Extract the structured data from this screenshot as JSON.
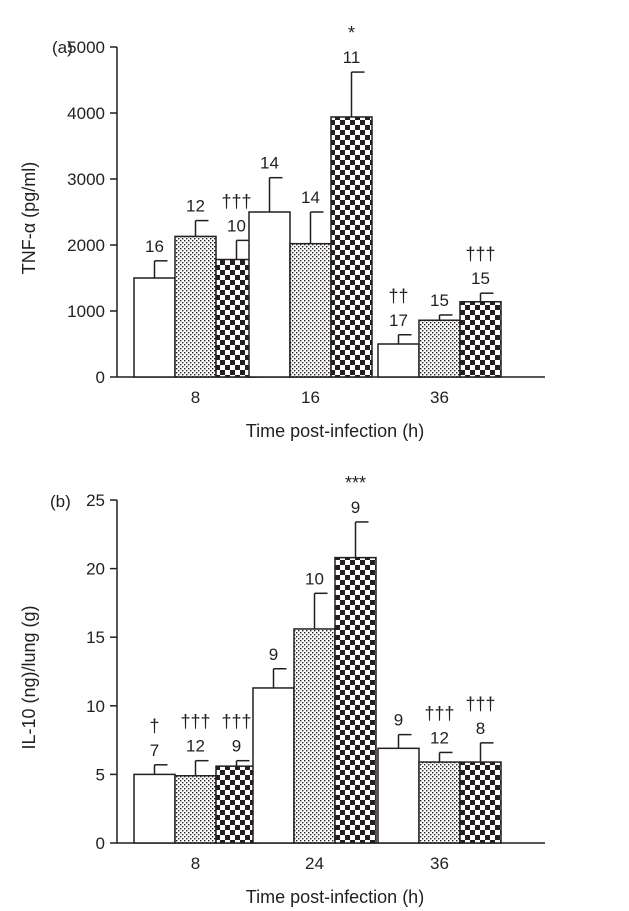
{
  "chart_data": [
    {
      "type": "bar",
      "panel": "(a)",
      "ylabel": "TNF-α (pg/ml)",
      "xlabel": "Time post-infection (h)",
      "categories": [
        "8",
        "16",
        "36"
      ],
      "ylim": [
        0,
        5000
      ],
      "yticks": [
        0,
        1000,
        2000,
        3000,
        4000,
        5000
      ],
      "series": [
        {
          "fill": "white",
          "values": [
            1500,
            2500,
            500
          ],
          "errors": [
            260,
            520,
            140
          ],
          "n": [
            "16",
            "14",
            "17"
          ]
        },
        {
          "fill": "dotted",
          "values": [
            2130,
            2020,
            860
          ],
          "errors": [
            240,
            480,
            80
          ],
          "n": [
            "12",
            "14",
            "15"
          ]
        },
        {
          "fill": "checkered",
          "values": [
            1780,
            3940,
            1140
          ],
          "errors": [
            290,
            680,
            130
          ],
          "n": [
            "10",
            "11",
            "15"
          ]
        }
      ],
      "annotations": [
        {
          "category": "8",
          "series": 2,
          "text": "†††"
        },
        {
          "category": "16",
          "series": 2,
          "text": "*"
        },
        {
          "category": "36",
          "series": 0,
          "text": "††"
        },
        {
          "category": "36",
          "series": 2,
          "text": "†††"
        }
      ]
    },
    {
      "type": "bar",
      "panel": "(b)",
      "ylabel": "IL-10 (ng)/lung (g)",
      "xlabel": "Time post-infection (h)",
      "categories": [
        "8",
        "24",
        "36"
      ],
      "ylim": [
        0,
        25
      ],
      "yticks": [
        0,
        5,
        10,
        15,
        20,
        25
      ],
      "series": [
        {
          "fill": "white",
          "values": [
            5.0,
            11.3,
            6.9
          ],
          "errors": [
            0.7,
            1.4,
            1.0
          ],
          "n": [
            "7",
            "9",
            "9"
          ]
        },
        {
          "fill": "dotted",
          "values": [
            4.9,
            15.6,
            5.9
          ],
          "errors": [
            1.1,
            2.6,
            0.7
          ],
          "n": [
            "12",
            "10",
            "12"
          ]
        },
        {
          "fill": "checkered",
          "values": [
            5.6,
            20.8,
            5.9
          ],
          "errors": [
            0.4,
            2.6,
            1.4
          ],
          "n": [
            "9",
            "9",
            "8"
          ]
        }
      ],
      "annotations": [
        {
          "category": "8",
          "series": 0,
          "text": "†"
        },
        {
          "category": "8",
          "series": 1,
          "text": "†††"
        },
        {
          "category": "8",
          "series": 2,
          "text": "†††"
        },
        {
          "category": "24",
          "series": 2,
          "text": "***"
        },
        {
          "category": "36",
          "series": 1,
          "text": "†††"
        },
        {
          "category": "36",
          "series": 2,
          "text": "†††"
        }
      ]
    }
  ]
}
